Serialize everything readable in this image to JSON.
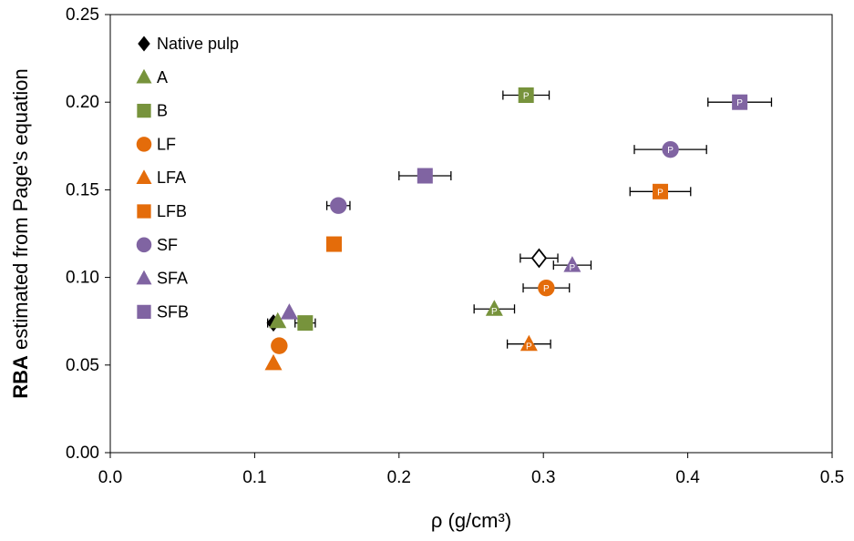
{
  "chart_data": {
    "type": "scatter",
    "xlabel": "ρ (g/cm³)",
    "ylabel_bold": "RBA",
    "ylabel_rest": " estimated from Page's equation",
    "xlim": [
      0,
      0.5
    ],
    "ylim": [
      0,
      0.25
    ],
    "x_ticks": [
      0,
      0.1,
      0.2,
      0.3,
      0.4,
      0.5
    ],
    "x_tick_labels": [
      "0.0",
      "0.1",
      "0.2",
      "0.3",
      "0.4",
      "0.5"
    ],
    "y_ticks": [
      0,
      0.05,
      0.1,
      0.15,
      0.2,
      0.25
    ],
    "y_tick_labels": [
      "0.00",
      "0.05",
      "0.10",
      "0.15",
      "0.20",
      "0.25"
    ],
    "grid": false,
    "legend_position": "top-left",
    "point_annotation": "P",
    "colors": {
      "black": "#000000",
      "green": "#77933c",
      "orange": "#e46c0a",
      "purple": "#8064a2"
    },
    "series": [
      {
        "name": "Native pulp",
        "marker": "diamond",
        "color": "#000000",
        "points": [
          {
            "x": 0.113,
            "y": 0.074,
            "xerr": 0.004,
            "label": ""
          },
          {
            "x": 0.297,
            "y": 0.111,
            "xerr": 0.013,
            "label": "P"
          }
        ]
      },
      {
        "name": "A",
        "marker": "triangle",
        "color": "#77933c",
        "points": [
          {
            "x": 0.116,
            "y": 0.075,
            "xerr": 0.0,
            "label": ""
          },
          {
            "x": 0.266,
            "y": 0.082,
            "xerr": 0.014,
            "label": "P"
          }
        ]
      },
      {
        "name": "B",
        "marker": "square",
        "color": "#77933c",
        "points": [
          {
            "x": 0.135,
            "y": 0.074,
            "xerr": 0.007,
            "label": ""
          },
          {
            "x": 0.288,
            "y": 0.204,
            "xerr": 0.016,
            "label": "P"
          }
        ]
      },
      {
        "name": "LF",
        "marker": "circle",
        "color": "#e46c0a",
        "points": [
          {
            "x": 0.117,
            "y": 0.061,
            "xerr": 0.0,
            "label": ""
          },
          {
            "x": 0.302,
            "y": 0.094,
            "xerr": 0.016,
            "label": "P"
          }
        ]
      },
      {
        "name": "LFA",
        "marker": "triangle",
        "color": "#e46c0a",
        "points": [
          {
            "x": 0.113,
            "y": 0.051,
            "xerr": 0.0,
            "label": ""
          },
          {
            "x": 0.29,
            "y": 0.062,
            "xerr": 0.015,
            "label": "P"
          }
        ]
      },
      {
        "name": "LFB",
        "marker": "square",
        "color": "#e46c0a",
        "points": [
          {
            "x": 0.155,
            "y": 0.119,
            "xerr": 0.0,
            "label": ""
          },
          {
            "x": 0.381,
            "y": 0.149,
            "xerr": 0.021,
            "label": "P"
          }
        ]
      },
      {
        "name": "SF",
        "marker": "circle",
        "color": "#8064a2",
        "points": [
          {
            "x": 0.158,
            "y": 0.141,
            "xerr": 0.008,
            "label": ""
          },
          {
            "x": 0.388,
            "y": 0.173,
            "xerr": 0.025,
            "label": "P"
          }
        ]
      },
      {
        "name": "SFA",
        "marker": "triangle",
        "color": "#8064a2",
        "points": [
          {
            "x": 0.124,
            "y": 0.08,
            "xerr": 0.0,
            "label": ""
          },
          {
            "x": 0.32,
            "y": 0.107,
            "xerr": 0.013,
            "label": "P"
          }
        ]
      },
      {
        "name": "SFB",
        "marker": "square",
        "color": "#8064a2",
        "points": [
          {
            "x": 0.218,
            "y": 0.158,
            "xerr": 0.018,
            "label": ""
          },
          {
            "x": 0.436,
            "y": 0.2,
            "xerr": 0.022,
            "label": "P"
          }
        ]
      }
    ]
  }
}
